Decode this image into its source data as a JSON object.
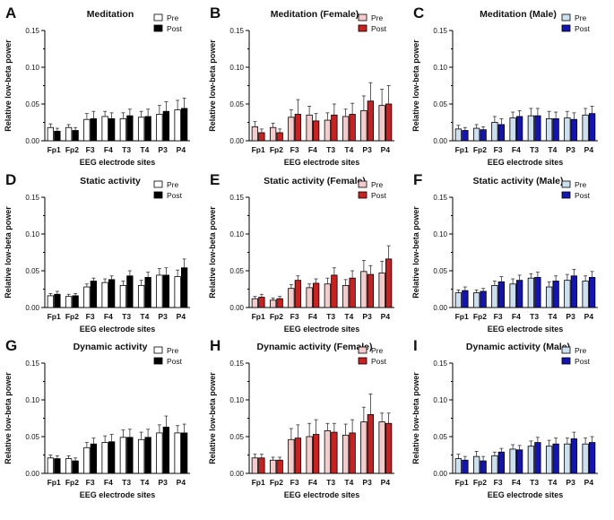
{
  "figure": {
    "description_free": true
  },
  "chart_data": [
    {
      "type": "bar",
      "letter": "A",
      "title": "Meditation",
      "xlabel": "EEG electrode sites",
      "ylabel": "Relative low-beta power",
      "ylim": [
        0,
        0.15
      ],
      "yticks": [
        "0.00",
        "0.05",
        "0.10",
        "0.15"
      ],
      "categories": [
        "Fp1",
        "Fp2",
        "F3",
        "F4",
        "T3",
        "T4",
        "P3",
        "P4"
      ],
      "legend_position": "top-right",
      "series": [
        {
          "name": "Pre",
          "fill": "#ffffff",
          "values": [
            0.018,
            0.018,
            0.029,
            0.033,
            0.03,
            0.032,
            0.036,
            0.042
          ],
          "errors": [
            0.005,
            0.004,
            0.008,
            0.007,
            0.008,
            0.008,
            0.012,
            0.013
          ]
        },
        {
          "name": "Post",
          "fill": "#000000",
          "values": [
            0.013,
            0.014,
            0.03,
            0.03,
            0.034,
            0.033,
            0.04,
            0.044
          ],
          "errors": [
            0.004,
            0.004,
            0.01,
            0.008,
            0.009,
            0.01,
            0.013,
            0.014
          ]
        }
      ]
    },
    {
      "type": "bar",
      "letter": "B",
      "title": "Meditation (Female)",
      "xlabel": "EEG electrode sites",
      "ylabel": "Relative low-beta power",
      "ylim": [
        0,
        0.15
      ],
      "yticks": [
        "0.00",
        "0.05",
        "0.10",
        "0.15"
      ],
      "categories": [
        "Fp1",
        "Fp2",
        "F3",
        "F4",
        "T3",
        "T4",
        "P3",
        "P4"
      ],
      "legend_position": "top-right",
      "series": [
        {
          "name": "Pre",
          "fill": "#f4cccc",
          "values": [
            0.019,
            0.018,
            0.032,
            0.035,
            0.028,
            0.033,
            0.041,
            0.048
          ],
          "errors": [
            0.007,
            0.006,
            0.01,
            0.012,
            0.01,
            0.01,
            0.02,
            0.022
          ]
        },
        {
          "name": "Post",
          "fill": "#cc1f1f",
          "values": [
            0.011,
            0.011,
            0.036,
            0.027,
            0.035,
            0.036,
            0.054,
            0.05
          ],
          "errors": [
            0.005,
            0.005,
            0.02,
            0.01,
            0.015,
            0.015,
            0.025,
            0.025
          ]
        }
      ]
    },
    {
      "type": "bar",
      "letter": "C",
      "title": "Meditation (Male)",
      "xlabel": "EEG electrode sites",
      "ylabel": "Relative low-beta power",
      "ylim": [
        0,
        0.15
      ],
      "yticks": [
        "0.00",
        "0.05",
        "0.10",
        "0.15"
      ],
      "categories": [
        "Fp1",
        "Fp2",
        "F3",
        "F4",
        "T3",
        "T4",
        "P3",
        "P4"
      ],
      "legend_position": "top-right",
      "series": [
        {
          "name": "Pre",
          "fill": "#cce0ef",
          "values": [
            0.016,
            0.017,
            0.025,
            0.031,
            0.034,
            0.03,
            0.031,
            0.035
          ],
          "errors": [
            0.005,
            0.005,
            0.008,
            0.008,
            0.01,
            0.01,
            0.009,
            0.009
          ]
        },
        {
          "name": "Post",
          "fill": "#1414b4",
          "values": [
            0.014,
            0.015,
            0.022,
            0.033,
            0.034,
            0.03,
            0.029,
            0.037
          ],
          "errors": [
            0.004,
            0.004,
            0.008,
            0.008,
            0.01,
            0.009,
            0.009,
            0.01
          ]
        }
      ]
    },
    {
      "type": "bar",
      "letter": "D",
      "title": "Static activity",
      "xlabel": "EEG electrode sites",
      "ylabel": "Relative low-beta power",
      "ylim": [
        0,
        0.15
      ],
      "yticks": [
        "0.00",
        "0.05",
        "0.10",
        "0.15"
      ],
      "categories": [
        "Fp1",
        "Fp2",
        "F3",
        "F4",
        "T3",
        "T4",
        "P3",
        "P4"
      ],
      "legend_position": "top-right",
      "series": [
        {
          "name": "Pre",
          "fill": "#ffffff",
          "values": [
            0.016,
            0.015,
            0.028,
            0.034,
            0.03,
            0.03,
            0.044,
            0.042
          ],
          "errors": [
            0.003,
            0.003,
            0.004,
            0.005,
            0.006,
            0.007,
            0.009,
            0.009
          ]
        },
        {
          "name": "Post",
          "fill": "#000000",
          "values": [
            0.018,
            0.016,
            0.036,
            0.038,
            0.043,
            0.041,
            0.044,
            0.054
          ],
          "errors": [
            0.004,
            0.003,
            0.004,
            0.005,
            0.007,
            0.007,
            0.01,
            0.012
          ]
        }
      ]
    },
    {
      "type": "bar",
      "letter": "E",
      "title": "Static activity (Female)",
      "xlabel": "EEG electrode sites",
      "ylabel": "Relative low-beta power",
      "ylim": [
        0,
        0.15
      ],
      "yticks": [
        "0.00",
        "0.05",
        "0.10",
        "0.15"
      ],
      "categories": [
        "Fp1",
        "Fp2",
        "F3",
        "F4",
        "T3",
        "T4",
        "P3",
        "P4"
      ],
      "legend_position": "top-right",
      "series": [
        {
          "name": "Pre",
          "fill": "#f4cccc",
          "values": [
            0.012,
            0.01,
            0.026,
            0.027,
            0.032,
            0.03,
            0.049,
            0.047
          ],
          "errors": [
            0.003,
            0.003,
            0.005,
            0.005,
            0.008,
            0.008,
            0.015,
            0.016
          ]
        },
        {
          "name": "Post",
          "fill": "#cc1f1f",
          "values": [
            0.014,
            0.012,
            0.037,
            0.033,
            0.044,
            0.04,
            0.045,
            0.066
          ],
          "errors": [
            0.004,
            0.003,
            0.006,
            0.006,
            0.01,
            0.01,
            0.012,
            0.018
          ]
        }
      ]
    },
    {
      "type": "bar",
      "letter": "F",
      "title": "Static activity (Male)",
      "xlabel": "EEG electrode sites",
      "ylabel": "Relative low-beta power",
      "ylim": [
        0,
        0.15
      ],
      "yticks": [
        "0.00",
        "0.05",
        "0.10",
        "0.15"
      ],
      "categories": [
        "Fp1",
        "Fp2",
        "F3",
        "F4",
        "T3",
        "T4",
        "P3",
        "P4"
      ],
      "legend_position": "top-right",
      "series": [
        {
          "name": "Pre",
          "fill": "#cce0ef",
          "values": [
            0.02,
            0.02,
            0.03,
            0.032,
            0.04,
            0.028,
            0.037,
            0.036
          ],
          "errors": [
            0.004,
            0.004,
            0.006,
            0.007,
            0.006,
            0.007,
            0.008,
            0.007
          ]
        },
        {
          "name": "Post",
          "fill": "#1414b4",
          "values": [
            0.023,
            0.022,
            0.035,
            0.037,
            0.041,
            0.036,
            0.043,
            0.041
          ],
          "errors": [
            0.005,
            0.004,
            0.007,
            0.007,
            0.007,
            0.007,
            0.009,
            0.008
          ]
        }
      ]
    },
    {
      "type": "bar",
      "letter": "G",
      "title": "Dynamic activity",
      "xlabel": "EEG electrode sites",
      "ylabel": "Relative low-beta power",
      "ylim": [
        0,
        0.15
      ],
      "yticks": [
        "0.00",
        "0.05",
        "0.10",
        "0.15"
      ],
      "categories": [
        "Fp1",
        "Fp2",
        "F3",
        "F4",
        "T3",
        "T4",
        "P3",
        "P4"
      ],
      "legend_position": "top-right",
      "series": [
        {
          "name": "Pre",
          "fill": "#ffffff",
          "values": [
            0.021,
            0.02,
            0.035,
            0.042,
            0.049,
            0.046,
            0.055,
            0.055
          ],
          "errors": [
            0.004,
            0.004,
            0.007,
            0.009,
            0.01,
            0.01,
            0.011,
            0.01
          ]
        },
        {
          "name": "Post",
          "fill": "#000000",
          "values": [
            0.02,
            0.017,
            0.04,
            0.043,
            0.049,
            0.049,
            0.063,
            0.055
          ],
          "errors": [
            0.004,
            0.004,
            0.008,
            0.01,
            0.011,
            0.011,
            0.015,
            0.012
          ]
        }
      ]
    },
    {
      "type": "bar",
      "letter": "H",
      "title": "Dynamic activity (Female)",
      "xlabel": "EEG electrode sites",
      "ylabel": "Relative low-beta power",
      "ylim": [
        0,
        0.15
      ],
      "yticks": [
        "0.00",
        "0.05",
        "0.10",
        "0.15"
      ],
      "categories": [
        "Fp1",
        "Fp2",
        "F3",
        "F4",
        "T3",
        "T4",
        "P3",
        "P4"
      ],
      "legend_position": "top-right",
      "series": [
        {
          "name": "Pre",
          "fill": "#f4cccc",
          "values": [
            0.021,
            0.018,
            0.046,
            0.05,
            0.058,
            0.052,
            0.07,
            0.07
          ],
          "errors": [
            0.005,
            0.004,
            0.015,
            0.018,
            0.01,
            0.015,
            0.02,
            0.012
          ]
        },
        {
          "name": "Post",
          "fill": "#cc1f1f",
          "values": [
            0.021,
            0.018,
            0.048,
            0.053,
            0.056,
            0.055,
            0.08,
            0.068
          ],
          "errors": [
            0.005,
            0.004,
            0.018,
            0.02,
            0.012,
            0.018,
            0.028,
            0.014
          ]
        }
      ]
    },
    {
      "type": "bar",
      "letter": "I",
      "title": "Dynamic activity (Male)",
      "xlabel": "EEG electrode sites",
      "ylabel": "Relative low-beta power",
      "ylim": [
        0,
        0.15
      ],
      "yticks": [
        "0.00",
        "0.05",
        "0.10",
        "0.15"
      ],
      "categories": [
        "Fp1",
        "Fp2",
        "F3",
        "F4",
        "T3",
        "T4",
        "P3",
        "P4"
      ],
      "legend_position": "top-right",
      "series": [
        {
          "name": "Pre",
          "fill": "#cce0ef",
          "values": [
            0.02,
            0.023,
            0.024,
            0.033,
            0.037,
            0.037,
            0.04,
            0.04
          ],
          "errors": [
            0.006,
            0.007,
            0.005,
            0.006,
            0.007,
            0.008,
            0.008,
            0.008
          ]
        },
        {
          "name": "Post",
          "fill": "#1414b4",
          "values": [
            0.018,
            0.017,
            0.029,
            0.032,
            0.042,
            0.04,
            0.047,
            0.042
          ],
          "errors": [
            0.005,
            0.006,
            0.005,
            0.006,
            0.007,
            0.008,
            0.009,
            0.008
          ]
        }
      ]
    }
  ]
}
